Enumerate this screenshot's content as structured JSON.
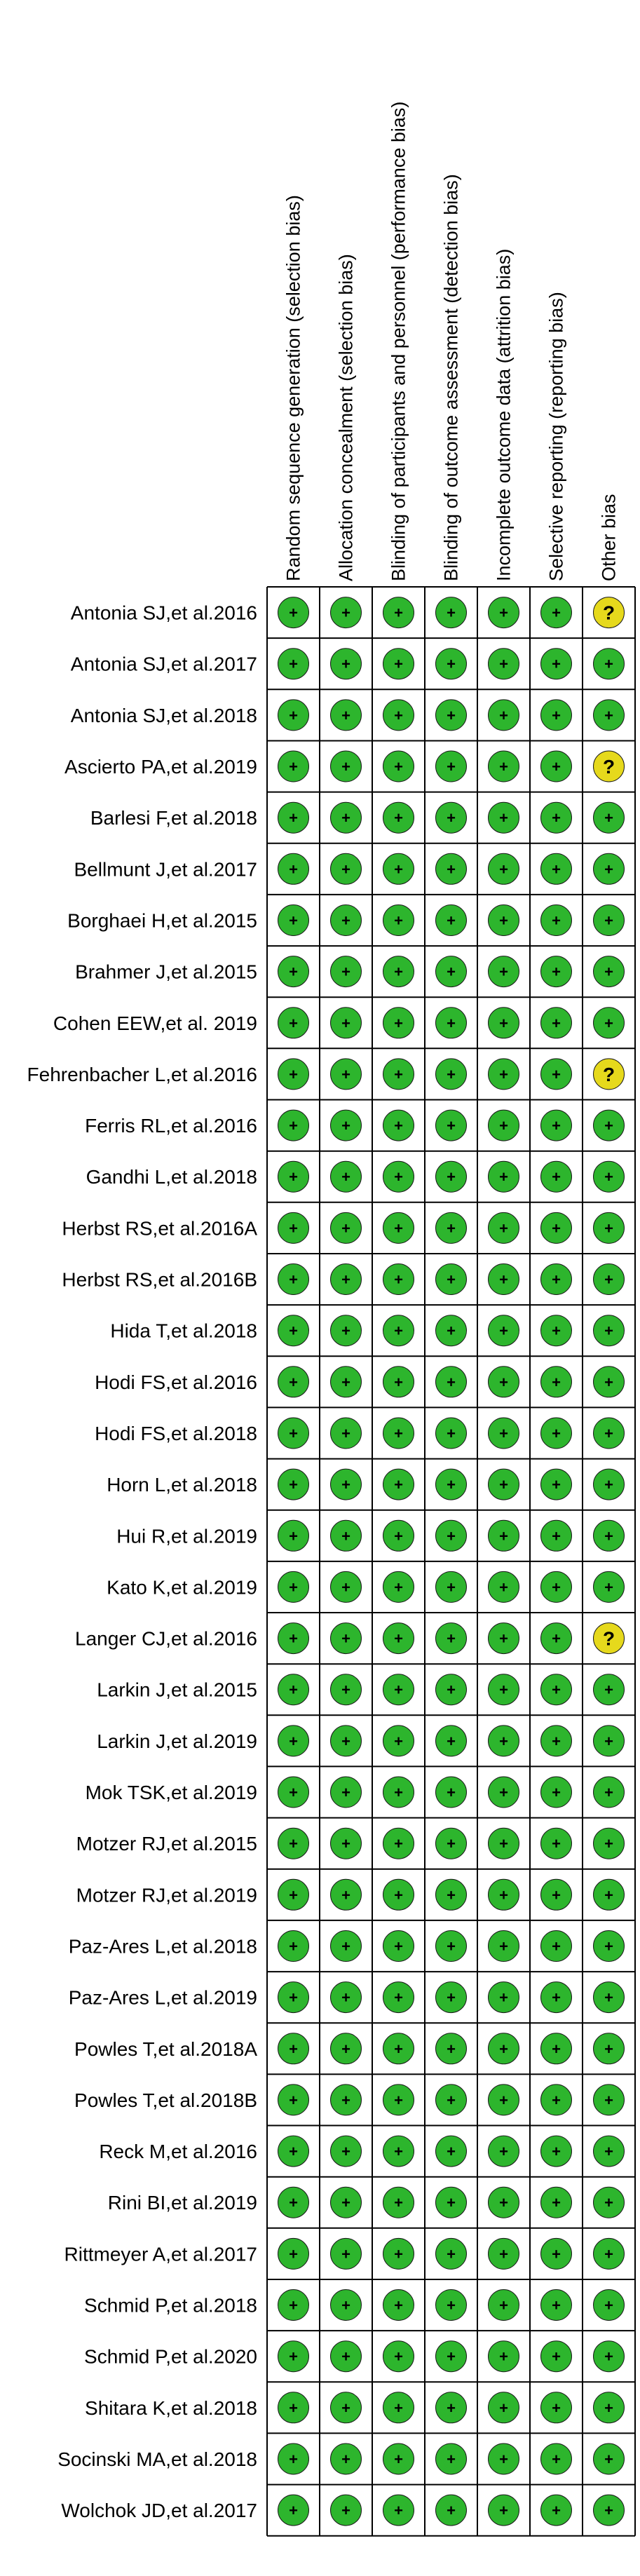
{
  "chart_data": {
    "type": "table",
    "title": "",
    "columns": [
      "Random sequence generation (selection bias)",
      "Allocation concealment (selection bias)",
      "Blinding of participants and personnel (performance bias)",
      "Blinding of outcome assessment (detection bias)",
      "Incomplete outcome data (attrition bias)",
      "Selective reporting (reporting bias)",
      "Other bias"
    ],
    "rows": [
      {
        "study": "Antonia SJ,et al.2016",
        "ratings": [
          "+",
          "+",
          "+",
          "+",
          "+",
          "+",
          "?"
        ]
      },
      {
        "study": "Antonia SJ,et al.2017",
        "ratings": [
          "+",
          "+",
          "+",
          "+",
          "+",
          "+",
          "+"
        ]
      },
      {
        "study": "Antonia SJ,et al.2018",
        "ratings": [
          "+",
          "+",
          "+",
          "+",
          "+",
          "+",
          "+"
        ]
      },
      {
        "study": "Ascierto PA,et al.2019",
        "ratings": [
          "+",
          "+",
          "+",
          "+",
          "+",
          "+",
          "?"
        ]
      },
      {
        "study": "Barlesi F,et al.2018",
        "ratings": [
          "+",
          "+",
          "+",
          "+",
          "+",
          "+",
          "+"
        ]
      },
      {
        "study": "Bellmunt J,et al.2017",
        "ratings": [
          "+",
          "+",
          "+",
          "+",
          "+",
          "+",
          "+"
        ]
      },
      {
        "study": "Borghaei H,et al.2015",
        "ratings": [
          "+",
          "+",
          "+",
          "+",
          "+",
          "+",
          "+"
        ]
      },
      {
        "study": "Brahmer J,et al.2015",
        "ratings": [
          "+",
          "+",
          "+",
          "+",
          "+",
          "+",
          "+"
        ]
      },
      {
        "study": "Cohen EEW,et al. 2019",
        "ratings": [
          "+",
          "+",
          "+",
          "+",
          "+",
          "+",
          "+"
        ]
      },
      {
        "study": "Fehrenbacher L,et al.2016",
        "ratings": [
          "+",
          "+",
          "+",
          "+",
          "+",
          "+",
          "?"
        ]
      },
      {
        "study": "Ferris RL,et al.2016",
        "ratings": [
          "+",
          "+",
          "+",
          "+",
          "+",
          "+",
          "+"
        ]
      },
      {
        "study": "Gandhi L,et al.2018",
        "ratings": [
          "+",
          "+",
          "+",
          "+",
          "+",
          "+",
          "+"
        ]
      },
      {
        "study": "Herbst RS,et al.2016A",
        "ratings": [
          "+",
          "+",
          "+",
          "+",
          "+",
          "+",
          "+"
        ]
      },
      {
        "study": "Herbst RS,et al.2016B",
        "ratings": [
          "+",
          "+",
          "+",
          "+",
          "+",
          "+",
          "+"
        ]
      },
      {
        "study": "Hida T,et al.2018",
        "ratings": [
          "+",
          "+",
          "+",
          "+",
          "+",
          "+",
          "+"
        ]
      },
      {
        "study": "Hodi FS,et al.2016",
        "ratings": [
          "+",
          "+",
          "+",
          "+",
          "+",
          "+",
          "+"
        ]
      },
      {
        "study": "Hodi FS,et al.2018",
        "ratings": [
          "+",
          "+",
          "+",
          "+",
          "+",
          "+",
          "+"
        ]
      },
      {
        "study": "Horn L,et al.2018",
        "ratings": [
          "+",
          "+",
          "+",
          "+",
          "+",
          "+",
          "+"
        ]
      },
      {
        "study": "Hui R,et al.2019",
        "ratings": [
          "+",
          "+",
          "+",
          "+",
          "+",
          "+",
          "+"
        ]
      },
      {
        "study": "Kato K,et al.2019",
        "ratings": [
          "+",
          "+",
          "+",
          "+",
          "+",
          "+",
          "+"
        ]
      },
      {
        "study": "Langer CJ,et al.2016",
        "ratings": [
          "+",
          "+",
          "+",
          "+",
          "+",
          "+",
          "?"
        ]
      },
      {
        "study": "Larkin J,et al.2015",
        "ratings": [
          "+",
          "+",
          "+",
          "+",
          "+",
          "+",
          "+"
        ]
      },
      {
        "study": "Larkin J,et al.2019",
        "ratings": [
          "+",
          "+",
          "+",
          "+",
          "+",
          "+",
          "+"
        ]
      },
      {
        "study": "Mok TSK,et al.2019",
        "ratings": [
          "+",
          "+",
          "+",
          "+",
          "+",
          "+",
          "+"
        ]
      },
      {
        "study": "Motzer RJ,et al.2015",
        "ratings": [
          "+",
          "+",
          "+",
          "+",
          "+",
          "+",
          "+"
        ]
      },
      {
        "study": "Motzer RJ,et al.2019",
        "ratings": [
          "+",
          "+",
          "+",
          "+",
          "+",
          "+",
          "+"
        ]
      },
      {
        "study": "Paz-Ares L,et al.2018",
        "ratings": [
          "+",
          "+",
          "+",
          "+",
          "+",
          "+",
          "+"
        ]
      },
      {
        "study": "Paz-Ares L,et al.2019",
        "ratings": [
          "+",
          "+",
          "+",
          "+",
          "+",
          "+",
          "+"
        ]
      },
      {
        "study": "Powles T,et al.2018A",
        "ratings": [
          "+",
          "+",
          "+",
          "+",
          "+",
          "+",
          "+"
        ]
      },
      {
        "study": "Powles T,et al.2018B",
        "ratings": [
          "+",
          "+",
          "+",
          "+",
          "+",
          "+",
          "+"
        ]
      },
      {
        "study": "Reck M,et al.2016",
        "ratings": [
          "+",
          "+",
          "+",
          "+",
          "+",
          "+",
          "+"
        ]
      },
      {
        "study": "Rini BI,et al.2019",
        "ratings": [
          "+",
          "+",
          "+",
          "+",
          "+",
          "+",
          "+"
        ]
      },
      {
        "study": "Rittmeyer A,et al.2017",
        "ratings": [
          "+",
          "+",
          "+",
          "+",
          "+",
          "+",
          "+"
        ]
      },
      {
        "study": "Schmid P,et al.2018",
        "ratings": [
          "+",
          "+",
          "+",
          "+",
          "+",
          "+",
          "+"
        ]
      },
      {
        "study": "Schmid P,et al.2020",
        "ratings": [
          "+",
          "+",
          "+",
          "+",
          "+",
          "+",
          "+"
        ]
      },
      {
        "study": "Shitara K,et al.2018",
        "ratings": [
          "+",
          "+",
          "+",
          "+",
          "+",
          "+",
          "+"
        ]
      },
      {
        "study": "Socinski MA,et al.2018",
        "ratings": [
          "+",
          "+",
          "+",
          "+",
          "+",
          "+",
          "+"
        ]
      },
      {
        "study": "Wolchok JD,et al.2017",
        "ratings": [
          "+",
          "+",
          "+",
          "+",
          "+",
          "+",
          "+"
        ]
      }
    ],
    "rating_colors": {
      "+": "#2db52d",
      "?": "#e6d91c"
    },
    "symbol_color": "#000000",
    "grid": true,
    "legend": "none"
  }
}
